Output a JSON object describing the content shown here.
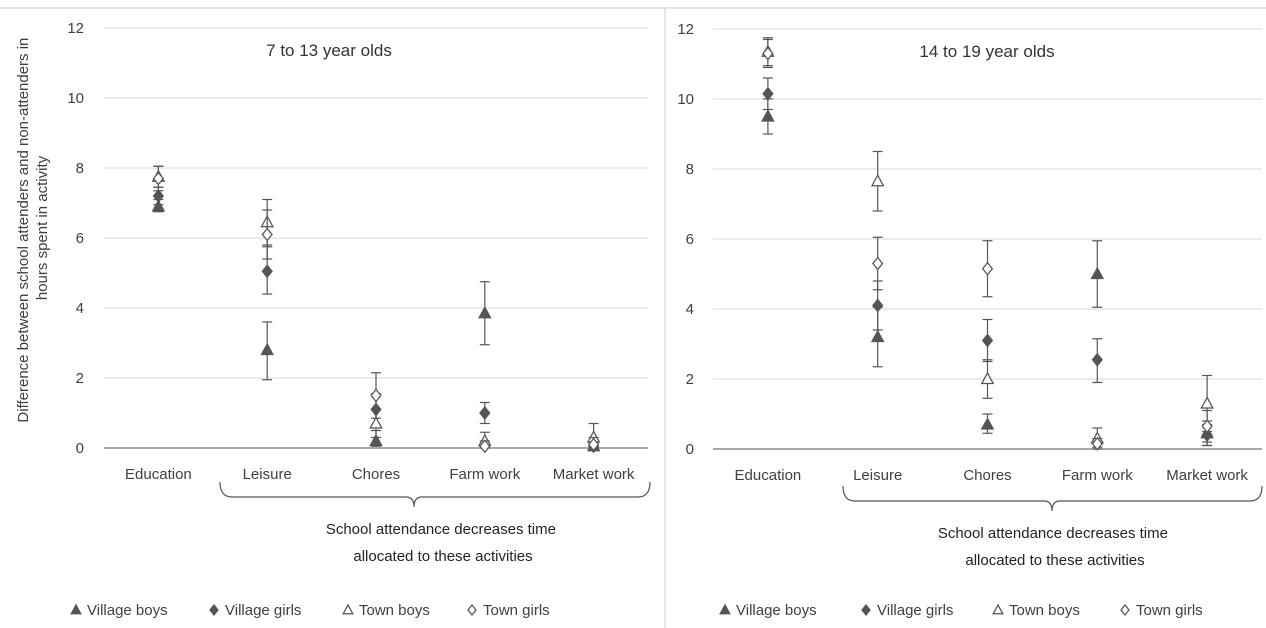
{
  "y_axis_title_lines": [
    "Difference between school attenders and non-attenders in",
    "hours spent in activity"
  ],
  "bracket_note_lines": [
    "School attendance decreases time",
    "allocated to these activities"
  ],
  "legend": [
    {
      "name": "Village boys",
      "marker": "filled-triangle"
    },
    {
      "name": "Village girls",
      "marker": "filled-diamond"
    },
    {
      "name": "Town boys",
      "marker": "open-triangle"
    },
    {
      "name": "Town girls",
      "marker": "open-diamond"
    }
  ],
  "colors": {
    "marker": "#555555",
    "gridline": "#d9d9d9",
    "text": "#404040"
  },
  "chart_data": [
    {
      "type": "scatter",
      "title": "7 to 13 year olds",
      "categories": [
        "Education",
        "Leisure",
        "Chores",
        "Farm work",
        "Market work"
      ],
      "ylim": [
        0,
        12
      ],
      "yticks": [
        0,
        2,
        4,
        6,
        8,
        10,
        12
      ],
      "grid": true,
      "legend_position": "bottom",
      "error_bars": true,
      "series": [
        {
          "name": "Village boys",
          "values": [
            6.9,
            2.8,
            0.2,
            3.85,
            0.05
          ],
          "err_low": [
            6.75,
            1.95,
            0.05,
            2.95,
            0.0
          ],
          "err_high": [
            7.1,
            3.6,
            0.5,
            4.75,
            0.2
          ]
        },
        {
          "name": "Village girls",
          "values": [
            7.2,
            5.05,
            1.1,
            1.0,
            0.05
          ],
          "err_low": [
            6.95,
            4.4,
            0.65,
            0.7,
            0.0
          ],
          "err_high": [
            7.45,
            5.75,
            1.55,
            1.3,
            0.15
          ]
        },
        {
          "name": "Town boys",
          "values": [
            7.75,
            6.45,
            0.7,
            0.2,
            0.3
          ],
          "err_low": [
            7.45,
            5.8,
            0.3,
            0.05,
            0.0
          ],
          "err_high": [
            8.05,
            7.1,
            1.1,
            0.45,
            0.7
          ]
        },
        {
          "name": "Town girls",
          "values": [
            7.7,
            6.1,
            1.5,
            0.05,
            0.1
          ],
          "err_low": [
            7.35,
            5.4,
            0.85,
            0.0,
            0.0
          ],
          "err_high": [
            8.05,
            6.8,
            2.15,
            0.2,
            0.3
          ]
        }
      ]
    },
    {
      "type": "scatter",
      "title": "14 to 19 year olds",
      "categories": [
        "Education",
        "Leisure",
        "Chores",
        "Farm work",
        "Market work"
      ],
      "ylim": [
        0,
        12
      ],
      "yticks": [
        0,
        2,
        4,
        6,
        8,
        10,
        12
      ],
      "grid": true,
      "legend_position": "bottom",
      "error_bars": true,
      "series": [
        {
          "name": "Village boys",
          "values": [
            9.5,
            3.2,
            0.7,
            5.0,
            0.45
          ],
          "err_low": [
            9.0,
            2.35,
            0.45,
            4.05,
            0.1
          ],
          "err_high": [
            10.0,
            4.05,
            1.0,
            5.95,
            0.8
          ]
        },
        {
          "name": "Village girls",
          "values": [
            10.15,
            4.1,
            3.1,
            2.55,
            0.4
          ],
          "err_low": [
            9.7,
            3.4,
            2.5,
            1.9,
            0.1
          ],
          "err_high": [
            10.6,
            4.8,
            3.7,
            3.15,
            0.7
          ]
        },
        {
          "name": "Town boys",
          "values": [
            11.35,
            7.65,
            2.0,
            0.3,
            1.3
          ],
          "err_low": [
            10.95,
            6.8,
            1.45,
            0.05,
            0.5
          ],
          "err_high": [
            11.75,
            8.5,
            2.55,
            0.6,
            2.1
          ]
        },
        {
          "name": "Town girls",
          "values": [
            11.3,
            5.3,
            5.15,
            0.15,
            0.65
          ],
          "err_low": [
            10.9,
            4.55,
            4.35,
            0.0,
            0.2
          ],
          "err_high": [
            11.7,
            6.05,
            5.95,
            0.3,
            1.1
          ]
        }
      ]
    }
  ]
}
